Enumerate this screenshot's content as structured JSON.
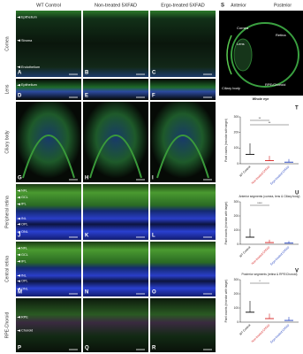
{
  "columns": [
    "WT Control",
    "Non-treated 5XFAD",
    "Ergo-treated 5XFAD"
  ],
  "rows": [
    "Cornea",
    "Lens",
    "Ciliary body",
    "Peripheral retina",
    "Central retina",
    "RPE-Choroid"
  ],
  "panels": [
    {
      "letter": "A",
      "labels": [
        "Epithelium",
        "Stroma",
        "Endothelium"
      ]
    },
    {
      "letter": "B"
    },
    {
      "letter": "C"
    },
    {
      "letter": "D",
      "labels": [
        "Epithelium"
      ]
    },
    {
      "letter": "E"
    },
    {
      "letter": "F"
    },
    {
      "letter": "G"
    },
    {
      "letter": "H"
    },
    {
      "letter": "I"
    },
    {
      "letter": "J",
      "labels": [
        "NFL",
        "GCL",
        "IPL",
        "INL",
        "OPL",
        "ONL"
      ]
    },
    {
      "letter": "K"
    },
    {
      "letter": "L"
    },
    {
      "letter": "M",
      "labels": [
        "NFL",
        "GCL",
        "IPL",
        "INL",
        "OPL",
        "ONL"
      ]
    },
    {
      "letter": "N"
    },
    {
      "letter": "O"
    },
    {
      "letter": "P",
      "labels": [
        "RPE",
        "Choroid"
      ]
    },
    {
      "letter": "Q"
    },
    {
      "letter": "R"
    }
  ],
  "eye": {
    "letter": "S",
    "anterior": "Anterior",
    "posterior": "Posterior",
    "labels": [
      "Cornea",
      "Lens",
      "Retina",
      "Ciliary body",
      "RPE/Choroid"
    ],
    "caption": "Whole eye"
  },
  "chart_data": [
    {
      "type": "dot",
      "letter": "T",
      "y_label": "Pixel counts (microbe with target)",
      "categories": [
        "WT Control",
        "Non-treated 5XFAD",
        "Ergo-treated 5XFAD"
      ],
      "values": [
        60,
        20,
        10
      ],
      "errors": [
        70,
        30,
        20
      ],
      "colors": [
        "#000000",
        "#d62020",
        "#1f3fbf"
      ],
      "ylim": [
        0,
        300
      ],
      "yticks": [
        0,
        100,
        200,
        300
      ],
      "significance": [
        "**",
        "**"
      ]
    },
    {
      "type": "dot",
      "letter": "U",
      "title": "Anterior segments (cornea, lens & Ciliary body)",
      "y_label": "Pixel counts (microbe with target)",
      "categories": [
        "WT Control",
        "Non-treated 5XFAD",
        "Ergo-treated 5XFAD"
      ],
      "values": [
        50,
        12,
        8
      ],
      "errors": [
        60,
        20,
        15
      ],
      "colors": [
        "#000000",
        "#d62020",
        "#1f3fbf"
      ],
      "ylim": [
        0,
        300
      ],
      "yticks": [
        0,
        100,
        200,
        300
      ],
      "significance": [
        "****"
      ]
    },
    {
      "type": "dot",
      "letter": "V",
      "title": "Posterior segments (retina & RPE/Choroid)",
      "y_label": "Pixel counts (microbe with target)",
      "categories": [
        "WT Control",
        "Non-treated 5XFAD",
        "Ergo-treated 5XFAD"
      ],
      "values": [
        70,
        25,
        12
      ],
      "errors": [
        80,
        35,
        25
      ],
      "colors": [
        "#000000",
        "#d62020",
        "#1f3fbf"
      ],
      "ylim": [
        0,
        300
      ],
      "yticks": [
        0,
        100,
        200,
        300
      ],
      "significance": [
        "*"
      ]
    }
  ]
}
